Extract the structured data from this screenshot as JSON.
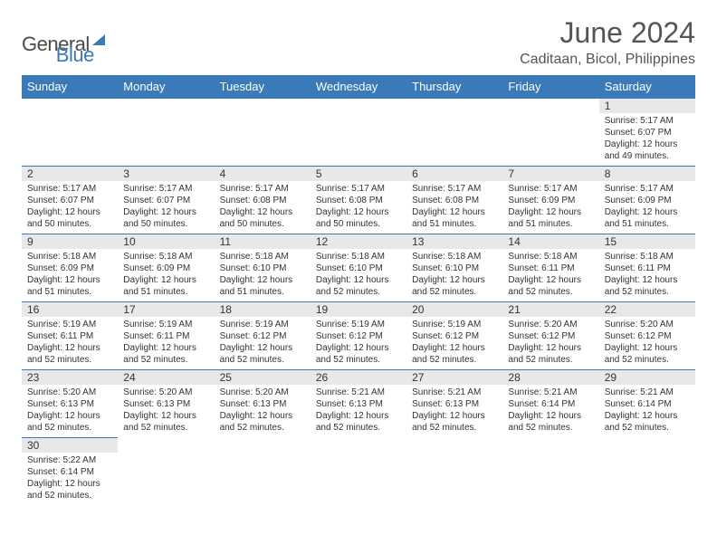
{
  "logo": {
    "text1": "General",
    "text2": "Blue"
  },
  "title": "June 2024",
  "location": "Caditaan, Bicol, Philippines",
  "colors": {
    "header_bg": "#3a7ab8",
    "header_text": "#ffffff",
    "day_num_bg": "#e8e8e8",
    "border": "#3a7ab8",
    "text": "#333333"
  },
  "layout": {
    "first_weekday": 6,
    "days_in_month": 30,
    "columns": 7
  },
  "weekdays": [
    "Sunday",
    "Monday",
    "Tuesday",
    "Wednesday",
    "Thursday",
    "Friday",
    "Saturday"
  ],
  "days": [
    {
      "n": 1,
      "sr": "5:17 AM",
      "ss": "6:07 PM",
      "dl": "12 hours and 49 minutes."
    },
    {
      "n": 2,
      "sr": "5:17 AM",
      "ss": "6:07 PM",
      "dl": "12 hours and 50 minutes."
    },
    {
      "n": 3,
      "sr": "5:17 AM",
      "ss": "6:07 PM",
      "dl": "12 hours and 50 minutes."
    },
    {
      "n": 4,
      "sr": "5:17 AM",
      "ss": "6:08 PM",
      "dl": "12 hours and 50 minutes."
    },
    {
      "n": 5,
      "sr": "5:17 AM",
      "ss": "6:08 PM",
      "dl": "12 hours and 50 minutes."
    },
    {
      "n": 6,
      "sr": "5:17 AM",
      "ss": "6:08 PM",
      "dl": "12 hours and 51 minutes."
    },
    {
      "n": 7,
      "sr": "5:17 AM",
      "ss": "6:09 PM",
      "dl": "12 hours and 51 minutes."
    },
    {
      "n": 8,
      "sr": "5:17 AM",
      "ss": "6:09 PM",
      "dl": "12 hours and 51 minutes."
    },
    {
      "n": 9,
      "sr": "5:18 AM",
      "ss": "6:09 PM",
      "dl": "12 hours and 51 minutes."
    },
    {
      "n": 10,
      "sr": "5:18 AM",
      "ss": "6:09 PM",
      "dl": "12 hours and 51 minutes."
    },
    {
      "n": 11,
      "sr": "5:18 AM",
      "ss": "6:10 PM",
      "dl": "12 hours and 51 minutes."
    },
    {
      "n": 12,
      "sr": "5:18 AM",
      "ss": "6:10 PM",
      "dl": "12 hours and 52 minutes."
    },
    {
      "n": 13,
      "sr": "5:18 AM",
      "ss": "6:10 PM",
      "dl": "12 hours and 52 minutes."
    },
    {
      "n": 14,
      "sr": "5:18 AM",
      "ss": "6:11 PM",
      "dl": "12 hours and 52 minutes."
    },
    {
      "n": 15,
      "sr": "5:18 AM",
      "ss": "6:11 PM",
      "dl": "12 hours and 52 minutes."
    },
    {
      "n": 16,
      "sr": "5:19 AM",
      "ss": "6:11 PM",
      "dl": "12 hours and 52 minutes."
    },
    {
      "n": 17,
      "sr": "5:19 AM",
      "ss": "6:11 PM",
      "dl": "12 hours and 52 minutes."
    },
    {
      "n": 18,
      "sr": "5:19 AM",
      "ss": "6:12 PM",
      "dl": "12 hours and 52 minutes."
    },
    {
      "n": 19,
      "sr": "5:19 AM",
      "ss": "6:12 PM",
      "dl": "12 hours and 52 minutes."
    },
    {
      "n": 20,
      "sr": "5:19 AM",
      "ss": "6:12 PM",
      "dl": "12 hours and 52 minutes."
    },
    {
      "n": 21,
      "sr": "5:20 AM",
      "ss": "6:12 PM",
      "dl": "12 hours and 52 minutes."
    },
    {
      "n": 22,
      "sr": "5:20 AM",
      "ss": "6:12 PM",
      "dl": "12 hours and 52 minutes."
    },
    {
      "n": 23,
      "sr": "5:20 AM",
      "ss": "6:13 PM",
      "dl": "12 hours and 52 minutes."
    },
    {
      "n": 24,
      "sr": "5:20 AM",
      "ss": "6:13 PM",
      "dl": "12 hours and 52 minutes."
    },
    {
      "n": 25,
      "sr": "5:20 AM",
      "ss": "6:13 PM",
      "dl": "12 hours and 52 minutes."
    },
    {
      "n": 26,
      "sr": "5:21 AM",
      "ss": "6:13 PM",
      "dl": "12 hours and 52 minutes."
    },
    {
      "n": 27,
      "sr": "5:21 AM",
      "ss": "6:13 PM",
      "dl": "12 hours and 52 minutes."
    },
    {
      "n": 28,
      "sr": "5:21 AM",
      "ss": "6:14 PM",
      "dl": "12 hours and 52 minutes."
    },
    {
      "n": 29,
      "sr": "5:21 AM",
      "ss": "6:14 PM",
      "dl": "12 hours and 52 minutes."
    },
    {
      "n": 30,
      "sr": "5:22 AM",
      "ss": "6:14 PM",
      "dl": "12 hours and 52 minutes."
    }
  ],
  "labels": {
    "sunrise": "Sunrise: ",
    "sunset": "Sunset: ",
    "daylight": "Daylight: "
  }
}
